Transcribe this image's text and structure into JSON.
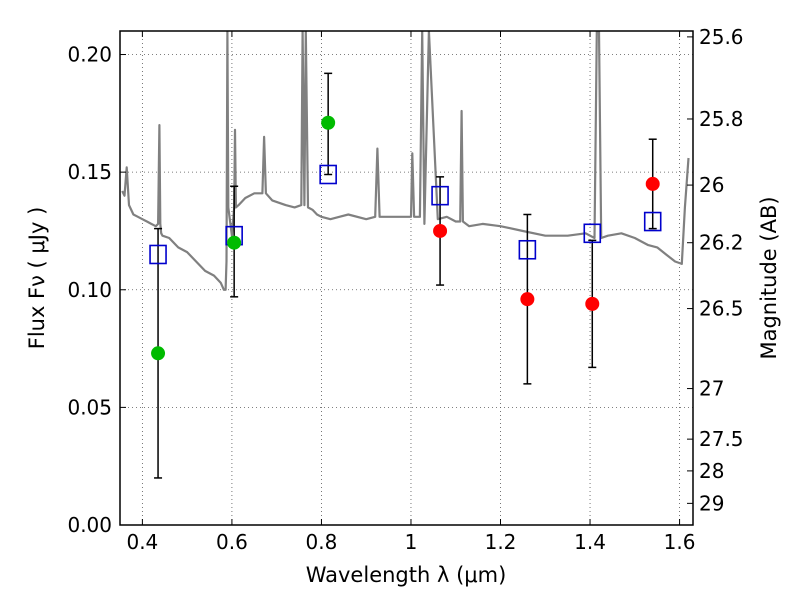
{
  "chart_data": {
    "type": "scatter",
    "xlabel": "Wavelength  λ (μm)",
    "ylabel": "Flux  Fν  ( μJy )",
    "ylabel_right": "Magnitude (AB)",
    "xlim": [
      0.35,
      1.63
    ],
    "ylim": [
      0.0,
      0.21
    ],
    "grid": true,
    "x_ticks": [
      0.4,
      0.6,
      0.8,
      1.0,
      1.2,
      1.4,
      1.6
    ],
    "x_tick_labels": [
      "0.4",
      "0.6",
      "0.8",
      "1",
      "1.2",
      "1.4",
      "1.6"
    ],
    "y_ticks": [
      0.0,
      0.05,
      0.1,
      0.15,
      0.2
    ],
    "y_tick_labels": [
      "0.00",
      "0.05",
      "0.10",
      "0.15",
      "0.20"
    ],
    "right_ticks": [
      {
        "label": "25.6",
        "flux": 0.2075
      },
      {
        "label": "25.8",
        "flux": 0.1726
      },
      {
        "label": "26",
        "flux": 0.1445
      },
      {
        "label": "26.2",
        "flux": 0.12
      },
      {
        "label": "26.5",
        "flux": 0.092
      },
      {
        "label": "27",
        "flux": 0.058
      },
      {
        "label": "27.5",
        "flux": 0.0365
      },
      {
        "label": "28",
        "flux": 0.023
      },
      {
        "label": "29",
        "flux": 0.0092
      }
    ],
    "series": [
      {
        "role": "template",
        "type": "line",
        "color": "#808080",
        "x": [
          0.355,
          0.36,
          0.365,
          0.37,
          0.38,
          0.39,
          0.4,
          0.41,
          0.42,
          0.43,
          0.435,
          0.438,
          0.44,
          0.442,
          0.445,
          0.46,
          0.48,
          0.5,
          0.52,
          0.54,
          0.56,
          0.575,
          0.582,
          0.586,
          0.588,
          0.59,
          0.592,
          0.6,
          0.605,
          0.607,
          0.609,
          0.615,
          0.63,
          0.65,
          0.668,
          0.672,
          0.676,
          0.69,
          0.72,
          0.74,
          0.755,
          0.758,
          0.762,
          0.765,
          0.77,
          0.78,
          0.79,
          0.8,
          0.82,
          0.84,
          0.86,
          0.9,
          0.92,
          0.925,
          0.93,
          0.95,
          1.0,
          1.003,
          1.007,
          1.02,
          1.025,
          1.03,
          1.04,
          1.06,
          1.08,
          1.1,
          1.11,
          1.113,
          1.116,
          1.13,
          1.16,
          1.2,
          1.25,
          1.3,
          1.35,
          1.39,
          1.41,
          1.415,
          1.42,
          1.425,
          1.44,
          1.47,
          1.5,
          1.53,
          1.55,
          1.57,
          1.59,
          1.605,
          1.612,
          1.62
        ],
        "y": [
          0.142,
          0.14,
          0.152,
          0.136,
          0.132,
          0.131,
          0.13,
          0.129,
          0.128,
          0.127,
          0.128,
          0.17,
          0.128,
          0.124,
          0.123,
          0.122,
          0.118,
          0.116,
          0.112,
          0.108,
          0.106,
          0.103,
          0.1,
          0.1,
          0.112,
          0.21,
          0.135,
          0.123,
          0.135,
          0.168,
          0.135,
          0.136,
          0.139,
          0.141,
          0.141,
          0.165,
          0.141,
          0.138,
          0.136,
          0.135,
          0.136,
          0.21,
          0.136,
          0.21,
          0.135,
          0.134,
          0.132,
          0.131,
          0.13,
          0.131,
          0.132,
          0.13,
          0.131,
          0.16,
          0.131,
          0.131,
          0.131,
          0.158,
          0.131,
          0.131,
          0.21,
          0.128,
          0.21,
          0.13,
          0.131,
          0.129,
          0.129,
          0.176,
          0.129,
          0.127,
          0.128,
          0.127,
          0.125,
          0.123,
          0.123,
          0.124,
          0.122,
          0.21,
          0.21,
          0.122,
          0.123,
          0.124,
          0.122,
          0.119,
          0.118,
          0.115,
          0.112,
          0.111,
          0.135,
          0.156
        ]
      },
      {
        "role": "model",
        "type": "scatter",
        "marker": "square",
        "color": "#0000cc",
        "x": [
          0.435,
          0.605,
          0.815,
          1.065,
          1.26,
          1.405,
          1.54
        ],
        "y": [
          0.115,
          0.123,
          0.149,
          0.14,
          0.117,
          0.124,
          0.129
        ]
      },
      {
        "role": "observed",
        "type": "scatter",
        "marker": "circle",
        "color": "#00bb00",
        "x": [
          0.435,
          0.605,
          0.815
        ],
        "y": [
          0.073,
          0.12,
          0.171
        ],
        "yerr_low": [
          0.053,
          0.023,
          0.022
        ],
        "yerr_high": [
          0.053,
          0.024,
          0.021
        ]
      },
      {
        "role": "observed",
        "type": "scatter",
        "marker": "circle",
        "color": "#ff0000",
        "x": [
          1.065,
          1.26,
          1.405,
          1.54
        ],
        "y": [
          0.125,
          0.096,
          0.094,
          0.145
        ],
        "yerr_low": [
          0.023,
          0.036,
          0.027,
          0.019
        ],
        "yerr_high": [
          0.023,
          0.036,
          0.027,
          0.019
        ]
      }
    ]
  }
}
